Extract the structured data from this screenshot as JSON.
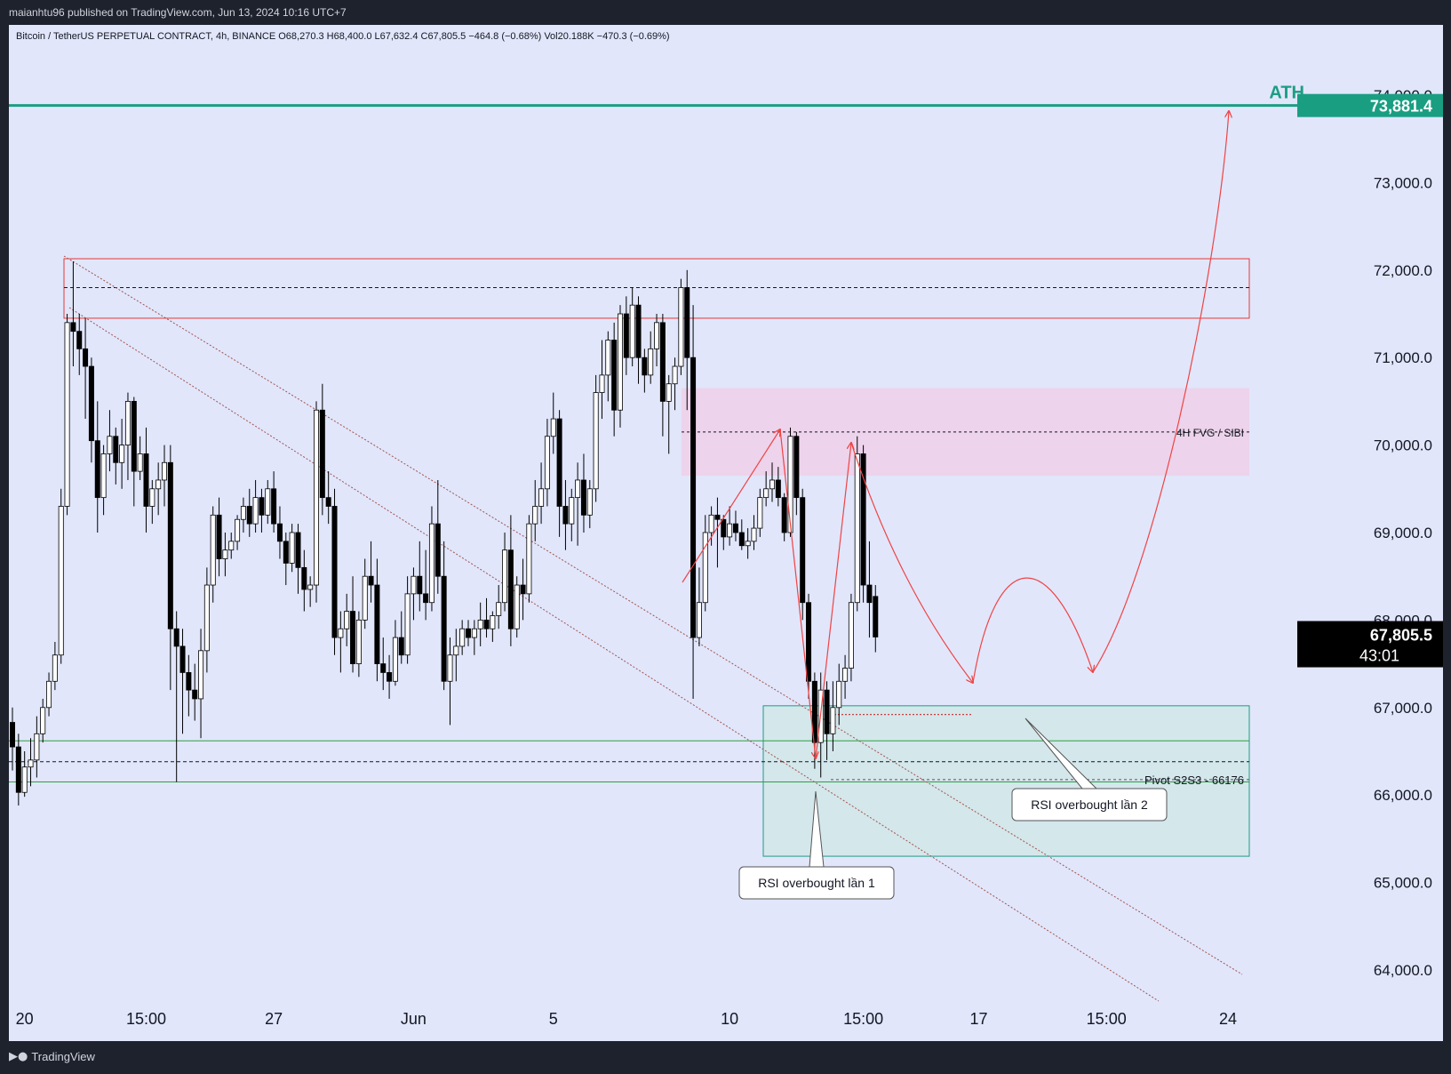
{
  "publisher_line": "maianhtu96 published on TradingView.com, Jun 13, 2024 10:16 UTC+7",
  "footer_brand": "TradingView",
  "footer_icon": "tradingview-logo-icon",
  "colors": {
    "panel_bg": "#e1e6fb",
    "frame_bg": "#1e222d",
    "candle_up_fill": "#ffffff",
    "candle_down_fill": "#000000",
    "ath_line": "#1a9e82",
    "resistance_zone": "#e53935",
    "fvg_zone": "#efcfe8",
    "support_zone": "#1a9e82",
    "arrow": "#ef4444",
    "trendline": "#a0554f"
  },
  "chart_data": {
    "type": "candlestick",
    "symbol_line": "Bitcoin / TetherUS PERPETUAL CONTRACT, 4h, BINANCE  O68,270.3  H68,400.0  L67,632.4  C67,805.5  −464.8 (−0.68%)  Vol20.188K  −470.3 (−0.69%)",
    "interval": "4h",
    "ylim": [
      63400,
      75200
    ],
    "y_ticks": [
      "74,000.0",
      "73,000.0",
      "72,000.0",
      "71,000.0",
      "70,000.0",
      "69,000.0",
      "68,000.0",
      "67,000.0",
      "66,000.0",
      "65,000.0",
      "64,000.0"
    ],
    "y_tick_values": [
      74000,
      73000,
      72000,
      71000,
      70000,
      69000,
      68000,
      67000,
      66000,
      65000,
      64000
    ],
    "x_ticks": [
      "20",
      "15:00",
      "27",
      "Jun",
      "5",
      "10",
      "15:00",
      "17",
      "15:00",
      "24"
    ],
    "x_tick_index": [
      2,
      22,
      43,
      66,
      89,
      118,
      140,
      159,
      180,
      200
    ],
    "bars_visible": 202,
    "candles": [
      [
        66830,
        67000,
        66280,
        66550
      ],
      [
        66550,
        66700,
        65880,
        66030
      ],
      [
        66030,
        66500,
        65980,
        66320
      ],
      [
        66320,
        66650,
        66100,
        66400
      ],
      [
        66400,
        66900,
        66200,
        66700
      ],
      [
        66700,
        67100,
        66600,
        67000
      ],
      [
        67000,
        67400,
        66900,
        67300
      ],
      [
        67300,
        67750,
        67200,
        67600
      ],
      [
        67600,
        69500,
        67500,
        69300
      ],
      [
        69300,
        71500,
        69200,
        71400
      ],
      [
        71400,
        72100,
        70900,
        71300
      ],
      [
        71300,
        71500,
        70800,
        71100
      ],
      [
        71100,
        71450,
        70300,
        70900
      ],
      [
        70900,
        71000,
        69800,
        70050
      ],
      [
        70050,
        70500,
        69000,
        69400
      ],
      [
        69400,
        70000,
        69200,
        69900
      ],
      [
        69900,
        70400,
        69700,
        70100
      ],
      [
        70100,
        70200,
        69550,
        69800
      ],
      [
        69800,
        70300,
        69500,
        70000
      ],
      [
        70000,
        70600,
        69600,
        70500
      ],
      [
        70500,
        70550,
        69300,
        69700
      ],
      [
        69700,
        70100,
        69600,
        69900
      ],
      [
        69900,
        70200,
        69000,
        69300
      ],
      [
        69300,
        69600,
        69100,
        69500
      ],
      [
        69500,
        69800,
        69200,
        69600
      ],
      [
        69600,
        70000,
        69300,
        69800
      ],
      [
        69800,
        70000,
        67200,
        67900
      ],
      [
        67900,
        68100,
        66150,
        67700
      ],
      [
        67700,
        67900,
        66700,
        67400
      ],
      [
        67400,
        67600,
        66900,
        67200
      ],
      [
        67200,
        67500,
        66850,
        67100
      ],
      [
        67100,
        67900,
        66650,
        67650
      ],
      [
        67650,
        68600,
        67400,
        68400
      ],
      [
        68400,
        69300,
        68200,
        69200
      ],
      [
        69200,
        69400,
        68500,
        68700
      ],
      [
        68700,
        69000,
        68500,
        68800
      ],
      [
        68800,
        69000,
        68700,
        68900
      ],
      [
        68900,
        69200,
        68800,
        69150
      ],
      [
        69150,
        69400,
        69000,
        69300
      ],
      [
        69300,
        69500,
        68950,
        69100
      ],
      [
        69100,
        69600,
        69000,
        69400
      ],
      [
        69400,
        69500,
        69000,
        69200
      ],
      [
        69200,
        69600,
        69100,
        69500
      ],
      [
        69500,
        69700,
        69000,
        69100
      ],
      [
        69100,
        69300,
        68700,
        68900
      ],
      [
        68900,
        69000,
        68400,
        68650
      ],
      [
        68650,
        69100,
        68550,
        69000
      ],
      [
        69000,
        69100,
        68300,
        68600
      ],
      [
        68600,
        68800,
        68100,
        68350
      ],
      [
        68350,
        68500,
        68150,
        68400
      ],
      [
        68400,
        70500,
        68200,
        70400
      ],
      [
        70400,
        70700,
        69200,
        69400
      ],
      [
        69400,
        69700,
        69100,
        69300
      ],
      [
        69300,
        69500,
        67600,
        67800
      ],
      [
        67800,
        68100,
        67400,
        67900
      ],
      [
        67900,
        68300,
        67700,
        68100
      ],
      [
        68100,
        68500,
        67400,
        67500
      ],
      [
        67500,
        68100,
        67350,
        68000
      ],
      [
        68000,
        68700,
        67900,
        68500
      ],
      [
        68500,
        68900,
        68200,
        68400
      ],
      [
        68400,
        68700,
        67300,
        67500
      ],
      [
        67500,
        67800,
        67200,
        67400
      ],
      [
        67400,
        67600,
        67100,
        67300
      ],
      [
        67300,
        68000,
        67250,
        67800
      ],
      [
        67800,
        68100,
        67500,
        67600
      ],
      [
        67600,
        68500,
        67500,
        68300
      ],
      [
        68300,
        68600,
        68000,
        68500
      ],
      [
        68500,
        68900,
        68100,
        68300
      ],
      [
        68300,
        68800,
        68000,
        68200
      ],
      [
        68200,
        69300,
        68100,
        69100
      ],
      [
        69100,
        69600,
        68300,
        68500
      ],
      [
        68500,
        68900,
        67200,
        67300
      ],
      [
        67300,
        67800,
        66800,
        67600
      ],
      [
        67600,
        67900,
        67300,
        67700
      ],
      [
        67700,
        68000,
        67600,
        67900
      ],
      [
        67900,
        68000,
        67700,
        67800
      ],
      [
        67800,
        68000,
        67600,
        67900
      ],
      [
        67900,
        68200,
        67700,
        68000
      ],
      [
        68000,
        68250,
        67800,
        67900
      ],
      [
        67900,
        68100,
        67750,
        68050
      ],
      [
        68050,
        68400,
        67900,
        68200
      ],
      [
        68200,
        69000,
        68100,
        68800
      ],
      [
        68800,
        69200,
        67700,
        67900
      ],
      [
        67900,
        68500,
        67800,
        68400
      ],
      [
        68400,
        68700,
        68000,
        68300
      ],
      [
        68300,
        69200,
        68200,
        69100
      ],
      [
        69100,
        69600,
        68900,
        69300
      ],
      [
        69300,
        69800,
        69100,
        69500
      ],
      [
        69500,
        70300,
        69300,
        70100
      ],
      [
        70100,
        70600,
        69900,
        70300
      ],
      [
        70300,
        70400,
        68950,
        69300
      ],
      [
        69300,
        69600,
        68800,
        69100
      ],
      [
        69100,
        69500,
        68900,
        69400
      ],
      [
        69400,
        69800,
        68850,
        69600
      ],
      [
        69600,
        69900,
        69000,
        69200
      ],
      [
        69200,
        69600,
        69050,
        69500
      ],
      [
        69500,
        70800,
        69350,
        70600
      ],
      [
        70600,
        71200,
        70300,
        70800
      ],
      [
        70800,
        71300,
        70500,
        71200
      ],
      [
        71200,
        71400,
        70100,
        70400
      ],
      [
        70400,
        71600,
        70200,
        71500
      ],
      [
        71500,
        71700,
        70800,
        71000
      ],
      [
        71000,
        71800,
        70900,
        71600
      ],
      [
        71600,
        71700,
        70700,
        71000
      ],
      [
        71000,
        71100,
        70600,
        70800
      ],
      [
        70800,
        71300,
        70700,
        71100
      ],
      [
        71100,
        71500,
        70900,
        71400
      ],
      [
        71400,
        71500,
        70100,
        70500
      ],
      [
        70500,
        70800,
        69900,
        70700
      ],
      [
        70700,
        71000,
        70400,
        70900
      ],
      [
        70900,
        71900,
        70800,
        71800
      ],
      [
        71800,
        72000,
        70400,
        71000
      ],
      [
        71000,
        71600,
        67100,
        67800
      ],
      [
        67800,
        68600,
        67700,
        68200
      ],
      [
        68200,
        69200,
        68100,
        69000
      ],
      [
        69000,
        69300,
        68850,
        69200
      ],
      [
        69200,
        69400,
        68600,
        69150
      ],
      [
        69150,
        69200,
        68800,
        68950
      ],
      [
        68950,
        69300,
        68850,
        69100
      ],
      [
        69100,
        69250,
        68900,
        69000
      ],
      [
        69000,
        69150,
        68800,
        68850
      ],
      [
        68850,
        69050,
        68700,
        68900
      ],
      [
        68900,
        69200,
        68800,
        69050
      ],
      [
        69050,
        69500,
        68950,
        69400
      ],
      [
        69400,
        69700,
        69300,
        69500
      ],
      [
        69500,
        69800,
        69350,
        69600
      ],
      [
        69600,
        69750,
        69300,
        69400
      ],
      [
        69400,
        69450,
        68900,
        69000
      ],
      [
        69000,
        70200,
        68950,
        70100
      ],
      [
        70100,
        70150,
        69200,
        69400
      ],
      [
        69400,
        69500,
        68000,
        68200
      ],
      [
        68200,
        68300,
        67100,
        67300
      ],
      [
        67300,
        67400,
        66300,
        66600
      ],
      [
        66600,
        67400,
        66200,
        67200
      ],
      [
        67200,
        67300,
        66400,
        66700
      ],
      [
        66700,
        67300,
        66500,
        67000
      ],
      [
        67000,
        67500,
        66800,
        67300
      ],
      [
        67300,
        67600,
        67100,
        67450
      ],
      [
        67450,
        68300,
        67300,
        68200
      ],
      [
        68200,
        70100,
        68100,
        69900
      ],
      [
        69900,
        70000,
        68200,
        68400
      ],
      [
        68400,
        68900,
        67800,
        68200
      ],
      [
        68270,
        68400,
        67632,
        67806
      ]
    ]
  },
  "annotations": {
    "ath_label": "ATH",
    "ath_price_label": "73,881.4",
    "ath_value": 73881.4,
    "fvg_label": "4H FVG / SIBI",
    "pivot_label": "Pivot S2S3 - 66176",
    "pivot_value": 66176,
    "current_price_label": "67,805.5",
    "countdown_label": "43:01",
    "current_price_value": 67805.5,
    "callout_1": "RSI overbought lần 1",
    "callout_2": "RSI overbought lần 2",
    "resistance_zone": [
      71450,
      72130
    ],
    "resistance_mid": 71800,
    "fvg_zone": [
      69650,
      70650
    ],
    "fvg_mid": 70150,
    "support_zone": [
      65300,
      67020
    ],
    "support_band": [
      66150,
      66620
    ],
    "support_mid": 66380
  }
}
